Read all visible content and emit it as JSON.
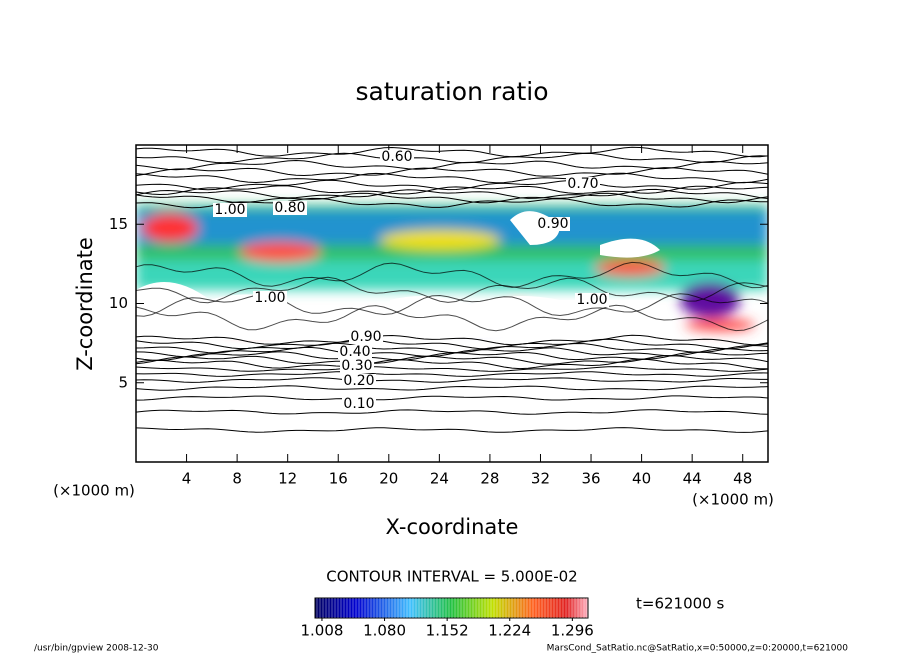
{
  "chart_data": {
    "type": "contour",
    "title": "saturation ratio",
    "xlabel": "X-coordinate",
    "ylabel": "Z-coordinate",
    "xunit": "(×1000 m)",
    "yunit": "(×1000 m)",
    "xlim": [
      0,
      50
    ],
    "xticks": [
      4,
      8,
      12,
      16,
      20,
      24,
      28,
      32,
      36,
      40,
      44,
      48
    ],
    "ylim": [
      0,
      20
    ],
    "yticks": [
      5,
      10,
      15
    ],
    "contour_labels": [
      "0.60",
      "0.70",
      "0.80",
      "0.90",
      "1.00",
      "1.00",
      "1.00",
      "0.90",
      "0.40",
      "0.30",
      "0.20",
      "0.10"
    ],
    "contour_interval": "CONTOUR INTERVAL = 5.000E-02",
    "time_label": "t=621000 s",
    "colorbar": {
      "clim": [
        1.0,
        1.314
      ],
      "ticks": [
        1.008,
        {
          "value": 1.08,
          "label": "1.080"
        },
        1.152,
        1.224,
        1.296
      ]
    },
    "footer_left": "/usr/bin/gpview   2008-12-30",
    "footer_right": "MarsCond_SatRatio.nc@SatRatio,x=0:50000,z=0:20000,t=621000"
  }
}
